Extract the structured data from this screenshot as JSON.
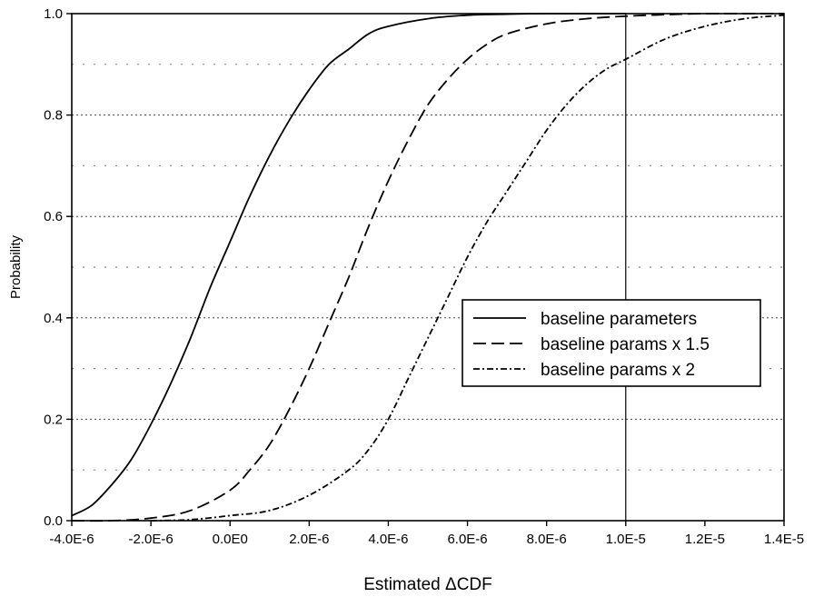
{
  "chart_data": {
    "type": "line",
    "title": "",
    "xlabel": "Estimated ΔCDF",
    "ylabel": "Probability",
    "xlim": [
      -4e-06,
      1.4e-05
    ],
    "ylim": [
      0.0,
      1.0
    ],
    "x_tick_values": [
      -4e-06,
      -2e-06,
      0.0,
      2e-06,
      4e-06,
      6e-06,
      8e-06,
      1e-05,
      1.2e-05,
      1.4e-05
    ],
    "x_tick_labels": [
      "-4.0E-6",
      "-2.0E-6",
      "0.0E0",
      "2.0E-6",
      "4.0E-6",
      "6.0E-6",
      "8.0E-6",
      "1.0E-5",
      "1.2E-5",
      "1.4E-5"
    ],
    "y_tick_values": [
      0.0,
      0.2,
      0.4,
      0.6,
      0.8,
      1.0
    ],
    "y_tick_labels": [
      "0.0",
      "0.2",
      "0.4",
      "0.6",
      "0.8",
      "1.0"
    ],
    "grid": "horizontal dotted",
    "reference_line_x": 1e-05,
    "legend_position": "right",
    "series": [
      {
        "name": "baseline parameters",
        "style": "solid",
        "x": [
          -4e-06,
          -3.5e-06,
          -3e-06,
          -2.5e-06,
          -2e-06,
          -1.5e-06,
          -1e-06,
          -5e-07,
          0.0,
          5e-07,
          1e-06,
          1.5e-06,
          2e-06,
          2.5e-06,
          3e-06,
          3.5e-06,
          4e-06,
          5e-06,
          6e-06,
          7e-06,
          8e-06,
          1e-05
        ],
        "y": [
          0.01,
          0.03,
          0.07,
          0.12,
          0.19,
          0.27,
          0.36,
          0.46,
          0.55,
          0.64,
          0.72,
          0.79,
          0.85,
          0.9,
          0.93,
          0.96,
          0.975,
          0.99,
          0.997,
          0.999,
          1.0,
          1.0
        ]
      },
      {
        "name": "baseline params x 1.5",
        "style": "dashed",
        "x": [
          -4e-06,
          -3e-06,
          -2e-06,
          -1e-06,
          0.0,
          5e-07,
          1e-06,
          1.5e-06,
          2e-06,
          2.5e-06,
          3e-06,
          3.5e-06,
          4e-06,
          4.5e-06,
          5e-06,
          5.5e-06,
          6e-06,
          6.5e-06,
          7e-06,
          8e-06,
          9e-06,
          1e-05,
          1.1e-05,
          1.2e-05,
          1.4e-05
        ],
        "y": [
          0.0,
          0.0,
          0.005,
          0.02,
          0.06,
          0.1,
          0.15,
          0.22,
          0.3,
          0.39,
          0.48,
          0.58,
          0.67,
          0.75,
          0.82,
          0.87,
          0.91,
          0.94,
          0.96,
          0.98,
          0.99,
          0.995,
          0.998,
          1.0,
          1.0
        ]
      },
      {
        "name": "baseline params x 2",
        "style": "dash-dot",
        "x": [
          -2e-06,
          -1e-06,
          0.0,
          1e-06,
          2e-06,
          3e-06,
          3.5e-06,
          4e-06,
          4.5e-06,
          5e-06,
          5.5e-06,
          6e-06,
          6.5e-06,
          7e-06,
          7.5e-06,
          8e-06,
          8.5e-06,
          9e-06,
          9.5e-06,
          1e-05,
          1.1e-05,
          1.2e-05,
          1.3e-05,
          1.4e-05
        ],
        "y": [
          0.0,
          0.002,
          0.01,
          0.02,
          0.05,
          0.1,
          0.14,
          0.2,
          0.28,
          0.36,
          0.44,
          0.52,
          0.59,
          0.65,
          0.71,
          0.77,
          0.82,
          0.86,
          0.89,
          0.91,
          0.95,
          0.975,
          0.99,
          0.997
        ]
      }
    ]
  }
}
